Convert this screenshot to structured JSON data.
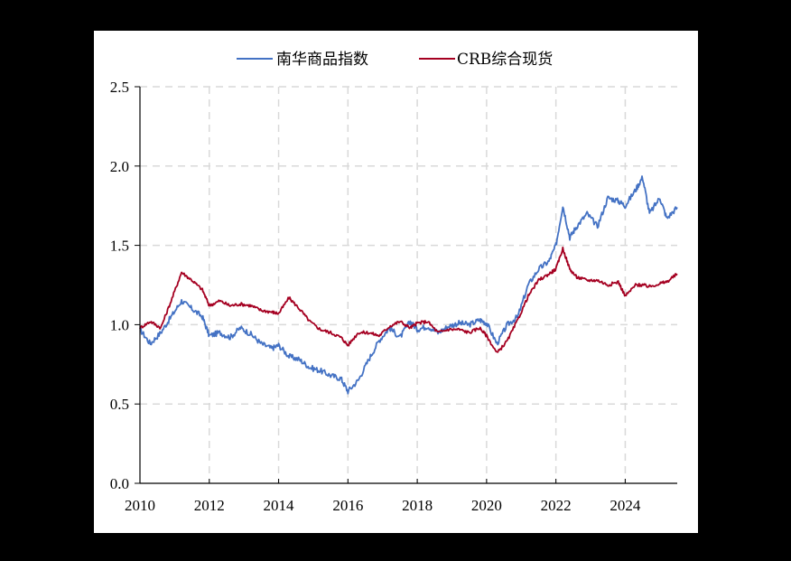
{
  "chart_data": {
    "type": "line",
    "title": "",
    "xlabel": "",
    "ylabel": "",
    "ylim": [
      0.0,
      2.5
    ],
    "xlim": [
      2010,
      2025.5
    ],
    "grid": true,
    "legend_position": "top",
    "y_ticks": [
      "0.0",
      "0.5",
      "1.0",
      "1.5",
      "2.0",
      "2.5"
    ],
    "x_ticks": [
      "2010",
      "2012",
      "2014",
      "2016",
      "2018",
      "2020",
      "2022",
      "2024"
    ],
    "legend": [
      "南华商品指数",
      "CRB综合现货"
    ],
    "colors": {
      "nanhua": "#4472C4",
      "crb": "#A50021"
    },
    "x": [
      2010.0,
      2010.3,
      2010.6,
      2010.9,
      2011.2,
      2011.5,
      2011.8,
      2012.0,
      2012.3,
      2012.6,
      2012.9,
      2013.2,
      2013.5,
      2013.8,
      2014.0,
      2014.3,
      2014.6,
      2014.9,
      2015.2,
      2015.5,
      2015.8,
      2016.0,
      2016.3,
      2016.6,
      2016.9,
      2017.2,
      2017.5,
      2017.8,
      2018.0,
      2018.3,
      2018.6,
      2018.9,
      2019.2,
      2019.5,
      2019.8,
      2020.0,
      2020.3,
      2020.6,
      2020.9,
      2021.2,
      2021.5,
      2021.8,
      2022.0,
      2022.2,
      2022.4,
      2022.6,
      2022.9,
      2023.2,
      2023.5,
      2023.8,
      2024.0,
      2024.3,
      2024.5,
      2024.7,
      2025.0,
      2025.2,
      2025.5
    ],
    "series": [
      {
        "name": "南华商品指数",
        "values": [
          0.97,
          0.88,
          0.95,
          1.05,
          1.15,
          1.1,
          1.05,
          0.93,
          0.95,
          0.92,
          0.98,
          0.94,
          0.88,
          0.85,
          0.87,
          0.8,
          0.78,
          0.73,
          0.71,
          0.68,
          0.66,
          0.58,
          0.65,
          0.78,
          0.9,
          0.98,
          0.92,
          1.02,
          0.97,
          0.99,
          0.95,
          0.99,
          1.01,
          1.0,
          1.03,
          1.01,
          0.88,
          1.0,
          1.05,
          1.25,
          1.35,
          1.4,
          1.5,
          1.75,
          1.55,
          1.62,
          1.7,
          1.62,
          1.8,
          1.78,
          1.75,
          1.85,
          1.93,
          1.7,
          1.8,
          1.67,
          1.74
        ]
      },
      {
        "name": "CRB综合现货",
        "values": [
          0.98,
          1.02,
          0.98,
          1.15,
          1.33,
          1.28,
          1.22,
          1.12,
          1.15,
          1.12,
          1.13,
          1.12,
          1.09,
          1.08,
          1.07,
          1.17,
          1.1,
          1.02,
          0.97,
          0.95,
          0.92,
          0.87,
          0.95,
          0.95,
          0.93,
          0.99,
          1.02,
          0.98,
          1.01,
          1.02,
          0.95,
          0.97,
          0.97,
          0.95,
          0.98,
          0.93,
          0.82,
          0.9,
          1.03,
          1.18,
          1.28,
          1.32,
          1.35,
          1.48,
          1.35,
          1.3,
          1.28,
          1.28,
          1.25,
          1.27,
          1.18,
          1.25,
          1.25,
          1.24,
          1.26,
          1.27,
          1.32
        ]
      }
    ]
  }
}
